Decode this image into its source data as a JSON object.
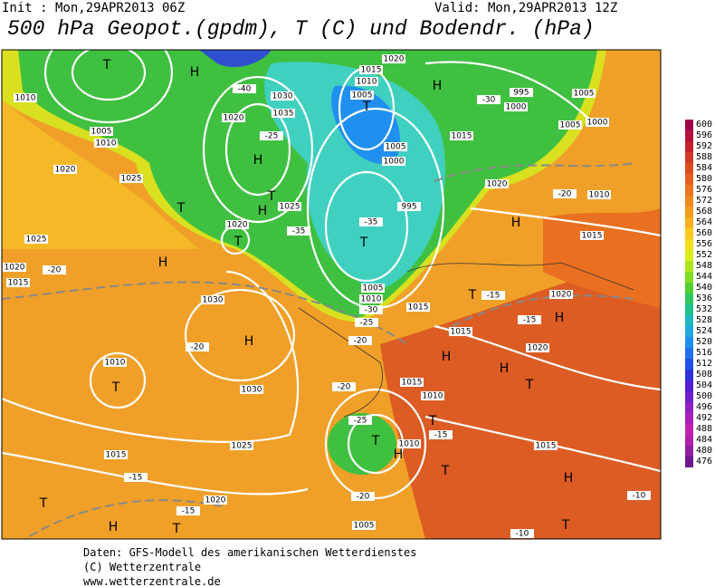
{
  "header": {
    "init": "Init : Mon,29APR2013 06Z",
    "valid": "Valid: Mon,29APR2013 12Z",
    "title": "500 hPa Geopot.(gpdm), T (C) und Bodendr. (hPa)"
  },
  "colorbar": {
    "levels": [
      600,
      596,
      592,
      588,
      584,
      580,
      576,
      572,
      568,
      564,
      560,
      556,
      552,
      548,
      544,
      540,
      536,
      532,
      528,
      524,
      520,
      516,
      512,
      508,
      504,
      500,
      496,
      492,
      488,
      484,
      480,
      476
    ],
    "colors": [
      "#a0004a",
      "#b4103c",
      "#c42030",
      "#d03828",
      "#dc4c20",
      "#e46020",
      "#ec7420",
      "#f08820",
      "#f49c20",
      "#f8b020",
      "#fcc820",
      "#f0e020",
      "#d8ec20",
      "#b0e420",
      "#80dc20",
      "#50d030",
      "#30c860",
      "#20c090",
      "#20b8c0",
      "#20a8e0",
      "#2090f0",
      "#2070f0",
      "#2050e8",
      "#3030d8",
      "#5020d0",
      "#7020c8",
      "#9020c0",
      "#a820b8",
      "#c020b0",
      "#b020a8",
      "#9020a0",
      "#701890"
    ]
  },
  "map_labels": [
    "T",
    "H",
    "1010",
    "1005",
    "1010",
    "1020",
    "1025",
    "T",
    "H",
    "1025",
    "1020",
    "1015",
    "-20",
    "1030",
    "H",
    "-20",
    "1010",
    "T",
    "1030",
    "1025",
    "1015",
    "-15",
    "1020",
    "T",
    "H",
    "T",
    "-15",
    "1020",
    "T",
    "1025",
    "H",
    "T",
    "H",
    "1030",
    "1035",
    "1020",
    "-40",
    "1015",
    "1010",
    "1005",
    "T",
    "1020",
    "1005",
    "1000",
    "995",
    "-35",
    "T",
    "1005",
    "1010",
    "1015",
    "-30",
    "-25",
    "H",
    "995",
    "1000",
    "1005",
    "1005",
    "1000",
    "1015",
    "1020",
    "-20",
    "1010",
    "H",
    "1015",
    "T",
    "-15",
    "1020",
    "-15",
    "H",
    "1020",
    "H",
    "H",
    "T",
    "1015",
    "-20",
    "-20",
    "1015",
    "1010",
    "-25",
    "T",
    "H",
    "1010",
    "T",
    "-15",
    "T",
    "1015",
    "H",
    "-10",
    "T",
    "-10",
    "1005",
    "-20",
    "-35",
    "-30",
    "-25"
  ],
  "footer": [
    "Daten: GFS-Modell des amerikanischen Wetterdienstes",
    "(C) Wetterzentrale",
    "www.wetterzentrale.de"
  ]
}
